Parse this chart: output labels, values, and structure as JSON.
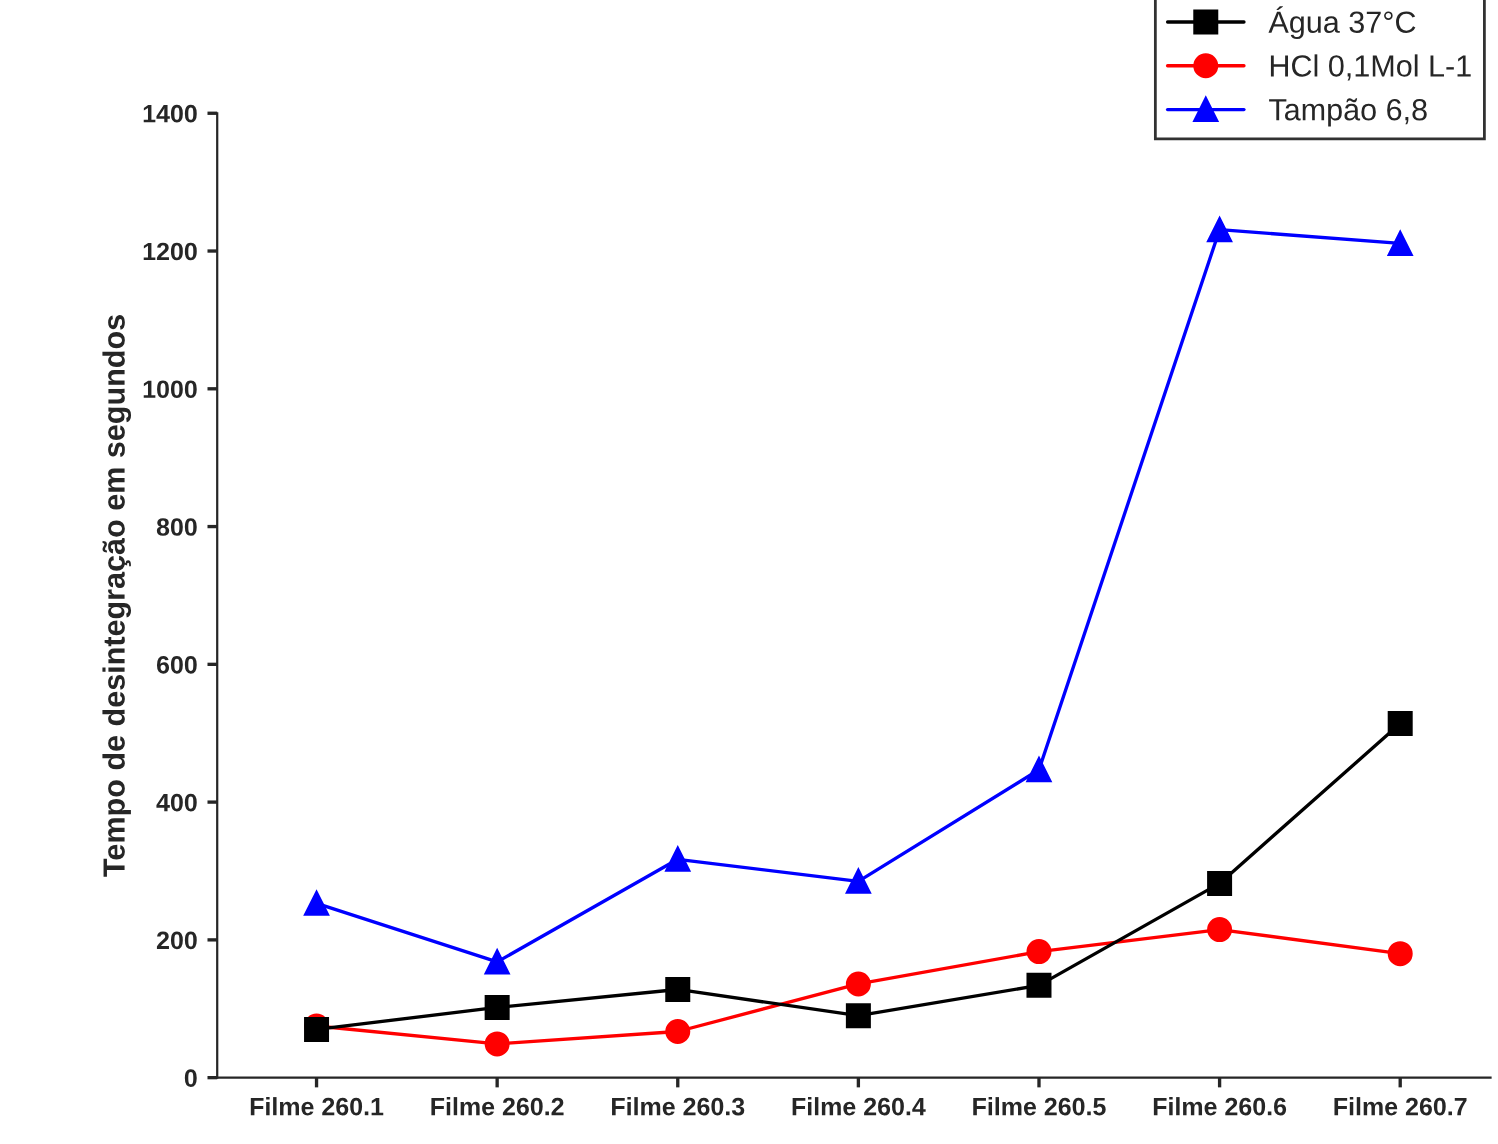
{
  "chart_data": {
    "type": "line",
    "ylabel": "Tempo de desintegração em segundos",
    "categories": [
      "Filme 260.1",
      "Filme 260.2",
      "Filme 260.3",
      "Filme 260.4",
      "Filme 260.5",
      "Filme 260.6",
      "Filme 260.7"
    ],
    "series": [
      {
        "name": "Água 37°C",
        "color": "#000000",
        "marker": "square",
        "values": [
          70,
          102,
          128,
          90,
          134,
          282,
          514
        ]
      },
      {
        "name": "HCl 0,1Mol L-1",
        "color": "#ff0000",
        "marker": "circle",
        "values": [
          75,
          49,
          67,
          136,
          183,
          215,
          180
        ]
      },
      {
        "name": "Tampão 6,8",
        "color": "#0000ff",
        "marker": "triangle",
        "values": [
          253,
          168,
          317,
          285,
          447,
          1231,
          1211
        ]
      }
    ],
    "ylim": [
      0,
      1400
    ],
    "yticks": [
      0,
      200,
      400,
      600,
      800,
      1000,
      1200,
      1400
    ],
    "grid": false,
    "legend": "top right",
    "line_style": "solid"
  }
}
